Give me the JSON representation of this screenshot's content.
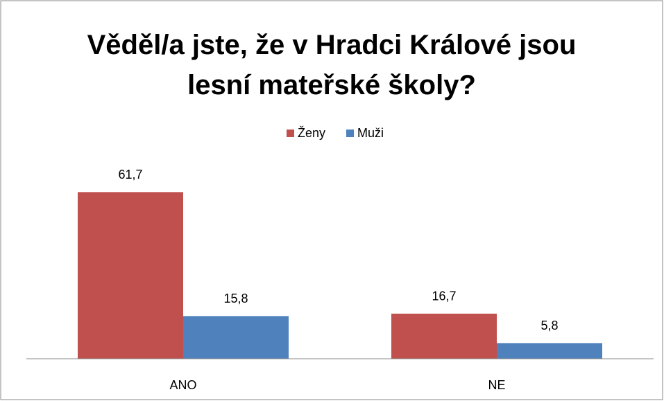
{
  "chart_data": {
    "type": "bar",
    "title": "Věděl/a jste, že v Hradci Králové jsou lesní mateřské školy?",
    "categories": [
      "ANO",
      "NE"
    ],
    "series": [
      {
        "name": "Ženy",
        "color": "#c0504d",
        "values": [
          61.7,
          16.7
        ],
        "value_labels": [
          "61,7",
          "16,7"
        ]
      },
      {
        "name": "Muži",
        "color": "#4f81bd",
        "values": [
          15.8,
          5.8
        ],
        "value_labels": [
          "15,8",
          "5,8"
        ]
      }
    ],
    "ylim": [
      0,
      70
    ],
    "legend": "top"
  }
}
